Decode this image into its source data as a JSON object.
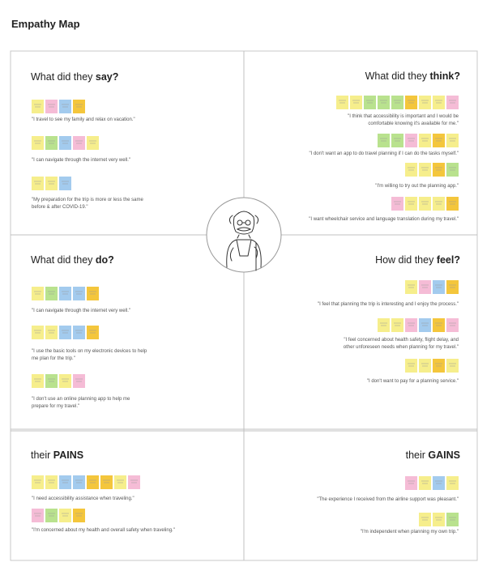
{
  "title": "Empathy Map",
  "quadrants": [
    {
      "heading": {
        "prefix": "What did they ",
        "emphasis": "say?"
      },
      "quotes": [
        [
          "\"I travel to see my family and relax on vacation.\""
        ],
        [
          "\"I can navigate through the internet very well.\""
        ],
        [
          "\"My preparation for the trip is more or less the same",
          "before & after COVID-19.\""
        ]
      ]
    },
    {
      "heading": {
        "prefix": "What did they ",
        "emphasis": "think?"
      },
      "quotes": [
        [
          "\"I think that accessibility is important and I would be",
          "comfortable knowing it's available for me.\""
        ],
        [
          "\"I don't want an app to do travel planning if I can do the tasks myself.\""
        ],
        [
          "\"I'm willing to try out the planning app.\""
        ],
        [
          "\"I want wheelchair service and language translation during my travel.\""
        ]
      ]
    },
    {
      "heading": {
        "prefix": "What did they ",
        "emphasis": "do?"
      },
      "quotes": [
        [
          "\"I can navigate through the internet very well.\""
        ],
        [
          "\"I use the basic tools on my electronic devices to help",
          "me plan for the trip.\""
        ],
        [
          "\"I don't use an online planning app to help me",
          "prepare for my travel.\""
        ]
      ]
    },
    {
      "heading": {
        "prefix": "How did they ",
        "emphasis": "feel?"
      },
      "quotes": [
        [
          "\"I feel that planning the trip is interesting and I enjoy the process.\""
        ],
        [
          "\"I feel concerned about health safety, flight delay, and",
          "other unforeseen needs when planning for my travel.\""
        ],
        [
          "\"I don't want to pay for a planning service.\""
        ]
      ]
    },
    {
      "heading": {
        "prefix": "their ",
        "emphasis": "PAINS"
      },
      "quotes": [
        [
          "\"I need accessibility assistance when traveling.\""
        ],
        [
          "\"I'm concerned about my health and overall safety when traveling.\""
        ]
      ]
    },
    {
      "heading": {
        "prefix": "their ",
        "emphasis": "GAINS"
      },
      "quotes": [
        [
          "\"The experience I received from the airline support was pleasant.\""
        ],
        [
          "\"I'm independent when planning my own trip.\""
        ]
      ]
    }
  ]
}
